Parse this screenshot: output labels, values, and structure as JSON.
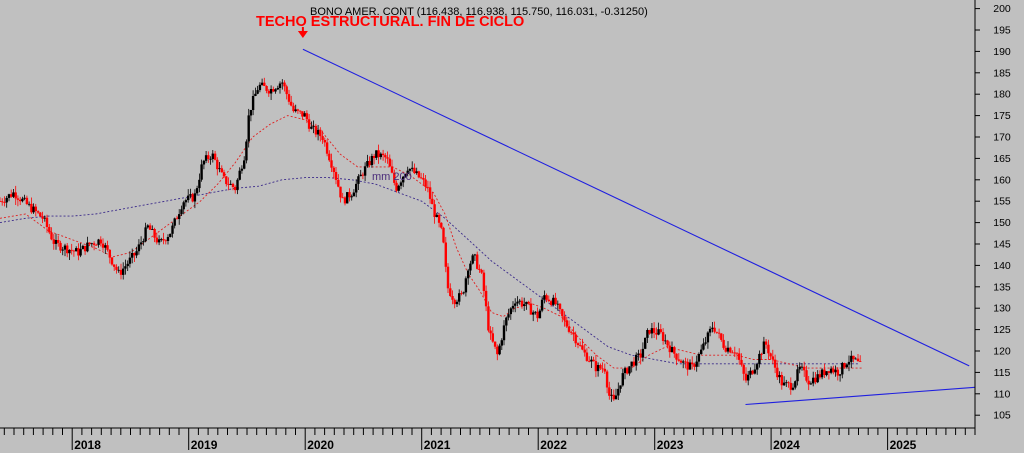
{
  "chart_data": {
    "type": "candlestick",
    "title": "BONO AMER. CONT (116.438, 116.938, 115.750, 116.031, -0.31250)",
    "annotation": "TECHO ESTRUCTURAL. FIN DE CICLO",
    "ma_label": "mm 200",
    "x_labels": [
      "2018",
      "2019",
      "2020",
      "2021",
      "2022",
      "2023",
      "2024",
      "2025"
    ],
    "y_ticks": [
      105,
      110,
      115,
      120,
      125,
      130,
      135,
      140,
      145,
      150,
      155,
      160,
      165,
      170,
      175,
      180,
      185,
      190,
      195,
      200
    ],
    "ylim": [
      102,
      202
    ],
    "xlim": [
      2017.38,
      2025.75
    ],
    "grid": false,
    "colors": {
      "up": "#000000",
      "down": "#ff0000",
      "trend": "#1f1fe0",
      "ma_fast": "#e02020",
      "ma_slow": "#3b2a8a",
      "annotation": "#ff0000"
    },
    "price_path": [
      [
        2017.38,
        155
      ],
      [
        2017.5,
        157
      ],
      [
        2017.62,
        154
      ],
      [
        2017.75,
        151
      ],
      [
        2017.85,
        145
      ],
      [
        2017.95,
        144
      ],
      [
        2018.05,
        143
      ],
      [
        2018.15,
        145
      ],
      [
        2018.25,
        146
      ],
      [
        2018.4,
        138
      ],
      [
        2018.55,
        143
      ],
      [
        2018.65,
        149
      ],
      [
        2018.75,
        145
      ],
      [
        2018.85,
        148
      ],
      [
        2018.95,
        155
      ],
      [
        2019.05,
        156
      ],
      [
        2019.12,
        164
      ],
      [
        2019.2,
        166
      ],
      [
        2019.3,
        160
      ],
      [
        2019.4,
        158
      ],
      [
        2019.48,
        166
      ],
      [
        2019.52,
        176
      ],
      [
        2019.6,
        182
      ],
      [
        2019.7,
        181
      ],
      [
        2019.8,
        183
      ],
      [
        2019.9,
        176
      ],
      [
        2020.0,
        175
      ],
      [
        2020.05,
        172
      ],
      [
        2020.15,
        170
      ],
      [
        2020.25,
        162
      ],
      [
        2020.32,
        155
      ],
      [
        2020.4,
        157
      ],
      [
        2020.5,
        162
      ],
      [
        2020.6,
        166
      ],
      [
        2020.7,
        165
      ],
      [
        2020.78,
        158
      ],
      [
        2020.88,
        163
      ],
      [
        2021.0,
        160
      ],
      [
        2021.05,
        158
      ],
      [
        2021.1,
        153
      ],
      [
        2021.18,
        147
      ],
      [
        2021.22,
        135
      ],
      [
        2021.28,
        132
      ],
      [
        2021.35,
        133
      ],
      [
        2021.4,
        140
      ],
      [
        2021.45,
        142
      ],
      [
        2021.52,
        137
      ],
      [
        2021.58,
        124
      ],
      [
        2021.65,
        119
      ],
      [
        2021.72,
        127
      ],
      [
        2021.8,
        132
      ],
      [
        2021.88,
        131
      ],
      [
        2022.0,
        128
      ],
      [
        2022.05,
        133
      ],
      [
        2022.15,
        131
      ],
      [
        2022.22,
        127
      ],
      [
        2022.3,
        124
      ],
      [
        2022.38,
        120
      ],
      [
        2022.5,
        116
      ],
      [
        2022.58,
        116
      ],
      [
        2022.6,
        110
      ],
      [
        2022.65,
        108
      ],
      [
        2022.72,
        114
      ],
      [
        2022.8,
        117
      ],
      [
        2022.88,
        119
      ],
      [
        2022.95,
        125
      ],
      [
        2023.05,
        124
      ],
      [
        2023.15,
        120
      ],
      [
        2023.25,
        117
      ],
      [
        2023.32,
        116
      ],
      [
        2023.4,
        120
      ],
      [
        2023.5,
        126
      ],
      [
        2023.6,
        121
      ],
      [
        2023.7,
        120
      ],
      [
        2023.78,
        113
      ],
      [
        2023.85,
        116
      ],
      [
        2023.95,
        122
      ],
      [
        2024.02,
        117
      ],
      [
        2024.1,
        112
      ],
      [
        2024.18,
        112
      ],
      [
        2024.25,
        116
      ],
      [
        2024.32,
        113
      ],
      [
        2024.4,
        114
      ],
      [
        2024.5,
        116
      ],
      [
        2024.58,
        115
      ],
      [
        2024.66,
        118
      ],
      [
        2024.73,
        117.5
      ],
      [
        2024.78,
        116
      ]
    ],
    "ma_fast": [
      [
        2017.38,
        151
      ],
      [
        2017.6,
        152
      ],
      [
        2017.8,
        148
      ],
      [
        2018.0,
        146
      ],
      [
        2018.2,
        144
      ],
      [
        2018.35,
        142
      ],
      [
        2018.5,
        143
      ],
      [
        2018.65,
        146
      ],
      [
        2018.8,
        149
      ],
      [
        2018.95,
        152
      ],
      [
        2019.1,
        155
      ],
      [
        2019.25,
        159
      ],
      [
        2019.4,
        164
      ],
      [
        2019.55,
        170
      ],
      [
        2019.7,
        173
      ],
      [
        2019.85,
        175
      ],
      [
        2020.0,
        174
      ],
      [
        2020.15,
        171
      ],
      [
        2020.3,
        166
      ],
      [
        2020.45,
        163
      ],
      [
        2020.6,
        163
      ],
      [
        2020.75,
        163
      ],
      [
        2020.9,
        161
      ],
      [
        2021.0,
        159
      ],
      [
        2021.1,
        157
      ],
      [
        2021.2,
        152
      ],
      [
        2021.3,
        144
      ],
      [
        2021.4,
        138
      ],
      [
        2021.5,
        134
      ],
      [
        2021.6,
        129
      ],
      [
        2021.7,
        128
      ],
      [
        2021.8,
        130
      ],
      [
        2021.95,
        131
      ],
      [
        2022.05,
        130
      ],
      [
        2022.2,
        128
      ],
      [
        2022.35,
        123
      ],
      [
        2022.5,
        119
      ],
      [
        2022.65,
        116
      ],
      [
        2022.8,
        116
      ],
      [
        2022.95,
        119
      ],
      [
        2023.1,
        121
      ],
      [
        2023.25,
        120
      ],
      [
        2023.4,
        119
      ],
      [
        2023.55,
        119
      ],
      [
        2023.7,
        119
      ],
      [
        2023.85,
        118
      ],
      [
        2024.0,
        118
      ],
      [
        2024.15,
        117
      ],
      [
        2024.3,
        116
      ],
      [
        2024.45,
        116
      ],
      [
        2024.6,
        116
      ],
      [
        2024.78,
        116
      ]
    ],
    "ma_slow": [
      [
        2017.38,
        150
      ],
      [
        2017.6,
        151
      ],
      [
        2017.8,
        151.5
      ],
      [
        2018.0,
        151.5
      ],
      [
        2018.2,
        152
      ],
      [
        2018.4,
        153
      ],
      [
        2018.6,
        154
      ],
      [
        2018.8,
        155
      ],
      [
        2019.0,
        156
      ],
      [
        2019.2,
        157
      ],
      [
        2019.4,
        158
      ],
      [
        2019.6,
        158.5
      ],
      [
        2019.8,
        160
      ],
      [
        2020.0,
        160.5
      ],
      [
        2020.2,
        160.5
      ],
      [
        2020.4,
        160
      ],
      [
        2020.6,
        159
      ],
      [
        2020.8,
        157
      ],
      [
        2021.0,
        155
      ],
      [
        2021.2,
        151
      ],
      [
        2021.4,
        146
      ],
      [
        2021.6,
        141
      ],
      [
        2021.8,
        137
      ],
      [
        2022.0,
        133
      ],
      [
        2022.2,
        129
      ],
      [
        2022.4,
        125
      ],
      [
        2022.6,
        121
      ],
      [
        2022.8,
        119
      ],
      [
        2023.0,
        118
      ],
      [
        2023.2,
        117
      ],
      [
        2023.4,
        117
      ],
      [
        2023.6,
        117
      ],
      [
        2023.8,
        117
      ],
      [
        2024.0,
        117
      ],
      [
        2024.2,
        117
      ],
      [
        2024.4,
        117
      ],
      [
        2024.6,
        117
      ],
      [
        2024.75,
        117
      ]
    ],
    "trend_lines": [
      {
        "name": "",
        "from": [
          2019.98,
          190.5
        ],
        "to": [
          2025.7,
          116.5
        ]
      },
      {
        "name": "",
        "from": [
          2023.78,
          107.5
        ],
        "to": [
          2025.75,
          111.5
        ]
      }
    ],
    "peak_marker": [
      2019.98,
      190.5
    ]
  }
}
